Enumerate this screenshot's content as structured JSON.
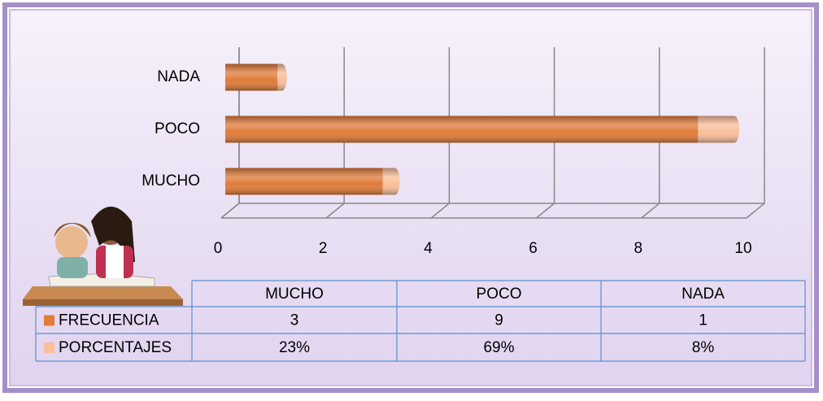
{
  "chart_data": {
    "type": "bar",
    "orientation": "horizontal",
    "stacked": true,
    "categories": [
      "MUCHO",
      "POCO",
      "NADA"
    ],
    "series": [
      {
        "name": "FRECUENCIA",
        "color": "#e07b39",
        "values": [
          3,
          9,
          1
        ]
      },
      {
        "name": "PORCENTAJES",
        "color": "#f9bf9a",
        "values": [
          0.23,
          0.69,
          0.08
        ],
        "value_labels": [
          "23%",
          "69%",
          "8%"
        ]
      }
    ],
    "xlim": [
      0,
      10
    ],
    "xticks": [
      0,
      2,
      4,
      6,
      8,
      10
    ],
    "grid": true,
    "data_table": true
  }
}
